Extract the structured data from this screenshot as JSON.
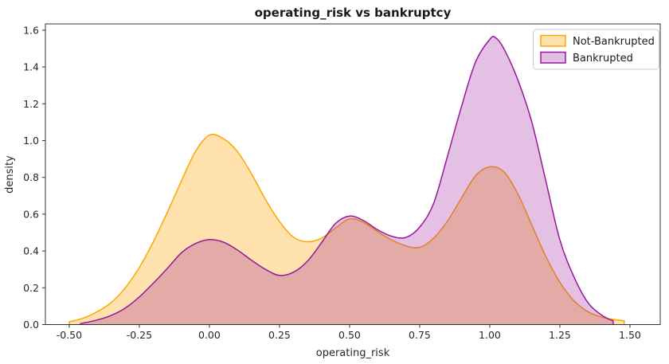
{
  "figure": {
    "title": "operating_risk vs bankruptcy",
    "xlabel": "operating_risk",
    "ylabel": "density",
    "background_color": "#ffffff",
    "spine_color": "#333333"
  },
  "legend": {
    "border_color": "#cccccc",
    "items": [
      {
        "label": "Not-Bankrupted",
        "line_color": "#ffa500",
        "fill_color": "#fce2b1"
      },
      {
        "label": "Bankrupted",
        "line_color": "#97189b",
        "fill_color": "#e0c1e3"
      }
    ]
  },
  "chart_data": {
    "type": "area",
    "subtype": "kde-density",
    "title": "operating_risk vs bankruptcy",
    "xlabel": "operating_risk",
    "ylabel": "density",
    "xlim": [
      -0.585,
      1.608
    ],
    "ylim": [
      0,
      1.634
    ],
    "xticks": [
      -0.5,
      -0.25,
      0.0,
      0.25,
      0.5,
      0.75,
      1.0,
      1.25,
      1.5
    ],
    "xtick_labels": [
      "-0.50",
      "-0.25",
      "0.00",
      "0.25",
      "0.50",
      "0.75",
      "1.00",
      "1.25",
      "1.50"
    ],
    "yticks": [
      0.0,
      0.2,
      0.4,
      0.6,
      0.8,
      1.0,
      1.2,
      1.4,
      1.6
    ],
    "ytick_labels": [
      "0.0",
      "0.2",
      "0.4",
      "0.6",
      "0.8",
      "1.0",
      "1.2",
      "1.4",
      "1.6"
    ],
    "grid": false,
    "legend_position": "upper right",
    "series": [
      {
        "name": "Not-Bankrupted",
        "line_color": "#ffa500",
        "fill_color": "rgba(255,165,0,0.32)",
        "points": [
          [
            -0.5,
            0.015
          ],
          [
            -0.45,
            0.035
          ],
          [
            -0.4,
            0.07
          ],
          [
            -0.35,
            0.12
          ],
          [
            -0.3,
            0.2
          ],
          [
            -0.25,
            0.31
          ],
          [
            -0.2,
            0.45
          ],
          [
            -0.15,
            0.61
          ],
          [
            -0.1,
            0.78
          ],
          [
            -0.05,
            0.94
          ],
          [
            0.0,
            1.03
          ],
          [
            0.05,
            1.01
          ],
          [
            0.1,
            0.94
          ],
          [
            0.15,
            0.82
          ],
          [
            0.2,
            0.68
          ],
          [
            0.25,
            0.56
          ],
          [
            0.3,
            0.475
          ],
          [
            0.35,
            0.45
          ],
          [
            0.4,
            0.47
          ],
          [
            0.45,
            0.525
          ],
          [
            0.5,
            0.575
          ],
          [
            0.55,
            0.555
          ],
          [
            0.6,
            0.505
          ],
          [
            0.65,
            0.46
          ],
          [
            0.7,
            0.428
          ],
          [
            0.75,
            0.42
          ],
          [
            0.8,
            0.47
          ],
          [
            0.85,
            0.565
          ],
          [
            0.9,
            0.69
          ],
          [
            0.95,
            0.81
          ],
          [
            1.0,
            0.857
          ],
          [
            1.05,
            0.83
          ],
          [
            1.1,
            0.71
          ],
          [
            1.15,
            0.54
          ],
          [
            1.2,
            0.37
          ],
          [
            1.25,
            0.23
          ],
          [
            1.3,
            0.13
          ],
          [
            1.35,
            0.07
          ],
          [
            1.4,
            0.04
          ],
          [
            1.44,
            0.028
          ],
          [
            1.48,
            0.02
          ]
        ]
      },
      {
        "name": "Bankrupted",
        "line_color": "#97189b",
        "fill_color": "rgba(151,24,155,0.27)",
        "points": [
          [
            -0.46,
            0.005
          ],
          [
            -0.4,
            0.025
          ],
          [
            -0.35,
            0.05
          ],
          [
            -0.3,
            0.09
          ],
          [
            -0.25,
            0.15
          ],
          [
            -0.2,
            0.225
          ],
          [
            -0.15,
            0.305
          ],
          [
            -0.1,
            0.39
          ],
          [
            -0.05,
            0.44
          ],
          [
            0.0,
            0.462
          ],
          [
            0.05,
            0.448
          ],
          [
            0.1,
            0.405
          ],
          [
            0.15,
            0.35
          ],
          [
            0.2,
            0.3
          ],
          [
            0.25,
            0.267
          ],
          [
            0.3,
            0.285
          ],
          [
            0.35,
            0.345
          ],
          [
            0.4,
            0.445
          ],
          [
            0.45,
            0.55
          ],
          [
            0.5,
            0.59
          ],
          [
            0.55,
            0.565
          ],
          [
            0.6,
            0.515
          ],
          [
            0.65,
            0.48
          ],
          [
            0.7,
            0.473
          ],
          [
            0.75,
            0.53
          ],
          [
            0.8,
            0.66
          ],
          [
            0.85,
            0.92
          ],
          [
            0.9,
            1.19
          ],
          [
            0.95,
            1.43
          ],
          [
            1.0,
            1.55
          ],
          [
            1.02,
            1.56
          ],
          [
            1.05,
            1.5
          ],
          [
            1.1,
            1.33
          ],
          [
            1.15,
            1.1
          ],
          [
            1.2,
            0.78
          ],
          [
            1.25,
            0.46
          ],
          [
            1.3,
            0.26
          ],
          [
            1.35,
            0.12
          ],
          [
            1.4,
            0.05
          ],
          [
            1.44,
            0.02
          ]
        ]
      }
    ]
  }
}
